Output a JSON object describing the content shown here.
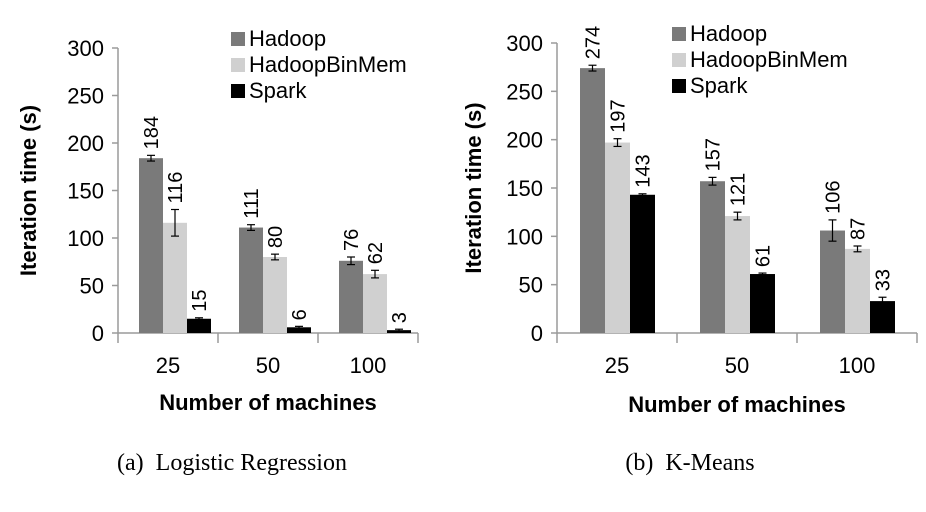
{
  "colors": {
    "Hadoop": "#7a7a7a",
    "HadoopBinMem": "#d0d0d0",
    "Spark": "#000000",
    "axis": "#9a9a9a"
  },
  "chart_data": [
    {
      "type": "bar",
      "caption": "(a)  Logistic Regression",
      "xlabel": "Number of machines",
      "ylabel": "Iteration time (s)",
      "ylim": [
        0,
        300
      ],
      "yticks": [
        0,
        50,
        100,
        150,
        200,
        250,
        300
      ],
      "categories": [
        "25",
        "50",
        "100"
      ],
      "legend_position": "top-right",
      "series": [
        {
          "name": "Hadoop",
          "values": [
            184,
            111,
            76
          ],
          "errors": [
            3,
            3,
            4
          ],
          "labels": [
            "184",
            "111",
            "76"
          ]
        },
        {
          "name": "HadoopBinMem",
          "values": [
            116,
            80,
            62
          ],
          "errors": [
            14,
            3,
            4
          ],
          "labels": [
            "116",
            "80",
            "62"
          ]
        },
        {
          "name": "Spark",
          "values": [
            15,
            6,
            3
          ],
          "errors": [
            1,
            1,
            1
          ],
          "labels": [
            "15",
            "6",
            "3"
          ]
        }
      ]
    },
    {
      "type": "bar",
      "caption": "(b)  K-Means",
      "xlabel": "Number of machines",
      "ylabel": "Iteration time (s)",
      "ylim": [
        0,
        300
      ],
      "yticks": [
        0,
        50,
        100,
        150,
        200,
        250,
        300
      ],
      "categories": [
        "25",
        "50",
        "100"
      ],
      "legend_position": "top-right",
      "series": [
        {
          "name": "Hadoop",
          "values": [
            274,
            157,
            106
          ],
          "errors": [
            3,
            4,
            11
          ],
          "labels": [
            "274",
            "157",
            "106"
          ]
        },
        {
          "name": "HadoopBinMem",
          "values": [
            197,
            121,
            87
          ],
          "errors": [
            4,
            4,
            3
          ],
          "labels": [
            "197",
            "121",
            "87"
          ]
        },
        {
          "name": "Spark",
          "values": [
            143,
            61,
            33
          ],
          "errors": [
            1,
            1,
            4
          ],
          "labels": [
            "143",
            "61",
            "33"
          ]
        }
      ]
    }
  ]
}
